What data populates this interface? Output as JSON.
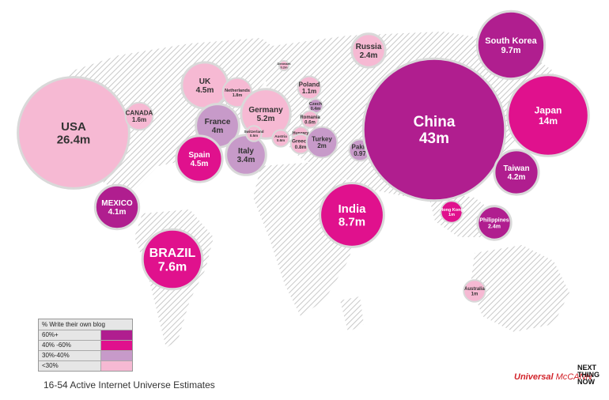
{
  "chart_data": {
    "type": "bubble-map",
    "title": "",
    "caption": "16-54 Active Internet Universe Estimates",
    "legend": {
      "title": "% Write their own blog",
      "entries": [
        {
          "label": "60%+",
          "color": "#b01e8f"
        },
        {
          "label": "40% -60%",
          "color": "#e0118d"
        },
        {
          "label": "30%-40%",
          "color": "#c79ac9"
        },
        {
          "label": "<30%",
          "color": "#f6b9d3"
        }
      ]
    },
    "bubbles": [
      {
        "name": "USA",
        "value": "26.4m",
        "millions": 26.4,
        "category": "<30%"
      },
      {
        "name": "CANADA",
        "value": "1.6m",
        "millions": 1.6,
        "category": "<30%"
      },
      {
        "name": "MEXICO",
        "value": "4.1m",
        "millions": 4.1,
        "category": "60%+"
      },
      {
        "name": "BRAZIL",
        "value": "7.6m",
        "millions": 7.6,
        "category": "40% -60%"
      },
      {
        "name": "UK",
        "value": "4.5m",
        "millions": 4.5,
        "category": "<30%"
      },
      {
        "name": "Netherlands",
        "value": "1.8m",
        "millions": 1.8,
        "category": "<30%"
      },
      {
        "name": "France",
        "value": "4m",
        "millions": 4.0,
        "category": "30%-40%"
      },
      {
        "name": "Germany",
        "value": "5.2m",
        "millions": 5.2,
        "category": "<30%"
      },
      {
        "name": "Spain",
        "value": "4.5m",
        "millions": 4.5,
        "category": "40% -60%"
      },
      {
        "name": "Italy",
        "value": "3.4m",
        "millions": 3.4,
        "category": "30%-40%"
      },
      {
        "name": "Switzerland",
        "value": "0.5m",
        "millions": 0.5,
        "category": "<30%"
      },
      {
        "name": "Austria",
        "value": "0.6m",
        "millions": 0.6,
        "category": "<30%"
      },
      {
        "name": "Denmark",
        "value": "0.2m",
        "millions": 0.2,
        "category": "<30%"
      },
      {
        "name": "Poland",
        "value": "1.1m",
        "millions": 1.1,
        "category": "<30%"
      },
      {
        "name": "Czech",
        "value": "0.4m",
        "millions": 0.4,
        "category": "30%-40%"
      },
      {
        "name": "Romania",
        "value": "0.6m",
        "millions": 0.6,
        "category": "<30%"
      },
      {
        "name": "Hungary",
        "value": "0.6m",
        "millions": 0.6,
        "category": "<30%"
      },
      {
        "name": "Greece",
        "value": "0.8m",
        "millions": 0.8,
        "category": "<30%"
      },
      {
        "name": "Turkey",
        "value": "2m",
        "millions": 2.0,
        "category": "30%-40%"
      },
      {
        "name": "Pakistan",
        "value": "0.97",
        "millions": 0.97,
        "category": "30%-40%"
      },
      {
        "name": "Russia",
        "value": "2.4m",
        "millions": 2.4,
        "category": "<30%"
      },
      {
        "name": "China",
        "value": "43m",
        "millions": 43,
        "category": "60%+"
      },
      {
        "name": "South Korea",
        "value": "9.7m",
        "millions": 9.7,
        "category": "60%+"
      },
      {
        "name": "Japan",
        "value": "14m",
        "millions": 14,
        "category": "40% -60%"
      },
      {
        "name": "Taiwan",
        "value": "4.2m",
        "millions": 4.2,
        "category": "60%+"
      },
      {
        "name": "India",
        "value": "8.7m",
        "millions": 8.7,
        "category": "40% -60%"
      },
      {
        "name": "Hong Kong",
        "value": "1m",
        "millions": 1.0,
        "category": "40% -60%"
      },
      {
        "name": "Philippines",
        "value": "2.4m",
        "millions": 2.4,
        "category": "60%+"
      },
      {
        "name": "Australia",
        "value": "1m",
        "millions": 1.0,
        "category": "<30%"
      }
    ]
  },
  "branding": {
    "um_bold": "Universal",
    "um_thin": " McCANN",
    "ntn_lines": [
      "NEXT",
      "THING",
      "NOW"
    ]
  }
}
